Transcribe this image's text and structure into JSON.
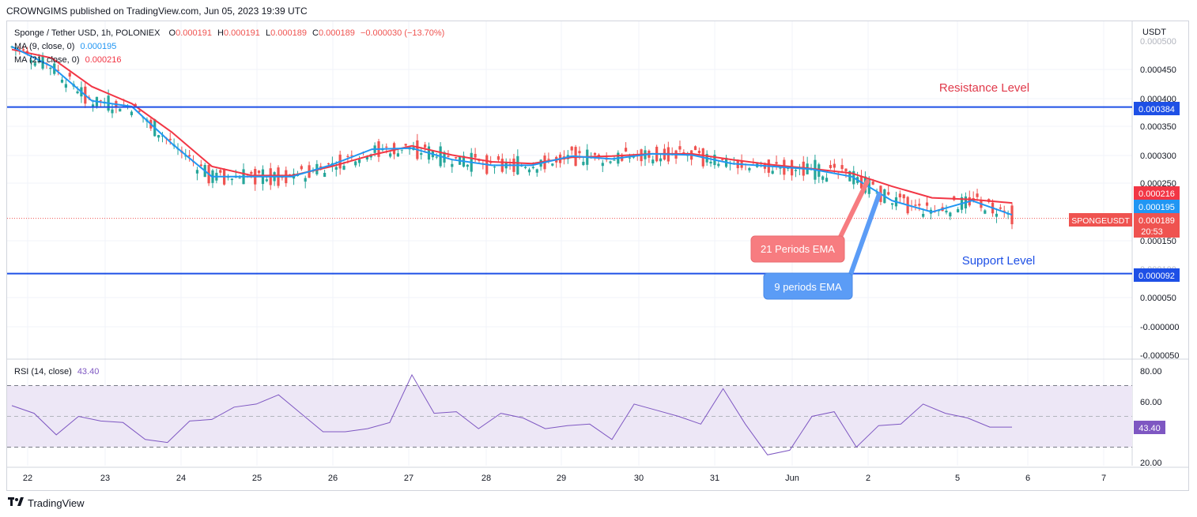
{
  "header": {
    "publisher_line": "CROWNGIMS published on TradingView.com, Jun 05, 2023 19:39 UTC"
  },
  "legend": {
    "symbol_line": "Sponge / Tether USD, 1h, POLONIEX",
    "ohlc": {
      "o_label": "O",
      "o": "0.000191",
      "h_label": "H",
      "h": "0.000191",
      "l_label": "L",
      "l": "0.000189",
      "c_label": "C",
      "c": "0.000189",
      "change": "−0.000030 (−13.70%)"
    },
    "ma9_label": "MA (9, close, 0)",
    "ma9_value": "0.000195",
    "ma21_label": "MA (21, close, 0)",
    "ma21_value": "0.000216"
  },
  "price_axis": {
    "currency": "USDT",
    "ticks": [
      "0.000500",
      "0.000450",
      "0.000400",
      "0.000350",
      "0.000300",
      "0.000250",
      "0.000150",
      "0.000100",
      "0.000050",
      "-0.000000",
      "-0.000050"
    ]
  },
  "price_tags": {
    "resistance": "0.000384",
    "ma21": "0.000216",
    "ma9": "0.000195",
    "last": "0.000189",
    "countdown": "20:53",
    "support": "0.000092",
    "symbol": "SPONGEUSDT"
  },
  "annotations": {
    "resistance_label": "Resistance Level",
    "support_label": "Support Level",
    "ema21_callout": "21 Periods EMA",
    "ema9_callout": "9 periods EMA"
  },
  "rsi": {
    "label": "RSI (14, close)",
    "value": "43.40",
    "ticks": [
      "80.00",
      "60.00",
      "20.00"
    ]
  },
  "time_axis": {
    "labels": [
      "22",
      "23",
      "24",
      "25",
      "26",
      "27",
      "28",
      "29",
      "30",
      "31",
      "Jun",
      "2",
      "5",
      "6",
      "7"
    ]
  },
  "footer": {
    "brand": "TradingView"
  },
  "colors": {
    "up": "#26a69a",
    "down": "#ef5350",
    "ma9": "#2196f3",
    "ma21": "#f23645",
    "level_line": "#1e50e6",
    "rsi_line": "#7e57c2",
    "rsi_band": "#ede7f6",
    "resistance_text": "#e0394a",
    "support_text": "#1e50e6"
  },
  "chart_data": {
    "type": "line",
    "title": "Sponge / Tether USD, 1h, POLONIEX",
    "ylabel": "USDT",
    "ylim": [
      -5e-05,
      0.00052
    ],
    "x": [
      "22",
      "22.5",
      "23",
      "23.5",
      "24",
      "24.5",
      "25",
      "25.5",
      "26",
      "26.5",
      "27",
      "27.5",
      "28",
      "28.5",
      "29",
      "29.5",
      "30",
      "30.5",
      "31",
      "31.5",
      "Jun",
      "Jun.5",
      "2",
      "4",
      "5",
      "5.5"
    ],
    "series": [
      {
        "name": "MA (9, close, 0)",
        "values": [
          0.00049,
          0.000455,
          0.000395,
          0.000385,
          0.00032,
          0.000262,
          0.000262,
          0.000262,
          0.000283,
          0.00031,
          0.000312,
          0.000292,
          0.000282,
          0.000282,
          0.000298,
          0.000293,
          0.000302,
          0.0003,
          0.000285,
          0.00028,
          0.000275,
          0.000262,
          0.00022,
          0.0002,
          0.00022,
          0.000195
        ]
      },
      {
        "name": "MA (21, close, 0)",
        "values": [
          0.000485,
          0.00047,
          0.00042,
          0.00039,
          0.00034,
          0.00028,
          0.000264,
          0.000264,
          0.00028,
          0.0003,
          0.000316,
          0.0003,
          0.000288,
          0.000285,
          0.000296,
          0.000298,
          0.000302,
          0.000302,
          0.000292,
          0.000283,
          0.000276,
          0.000268,
          0.000245,
          0.000225,
          0.000222,
          0.000216
        ]
      }
    ],
    "levels": {
      "resistance": 0.000384,
      "support": 9.2e-05,
      "last": 0.000189
    },
    "rsi": {
      "ylim": [
        10,
        90
      ],
      "bands": [
        30,
        70
      ],
      "values": [
        57,
        52,
        38,
        50,
        47,
        46,
        35,
        33,
        47,
        48,
        56,
        58,
        64,
        52,
        40,
        40,
        42,
        46,
        77,
        52,
        53,
        42,
        52,
        49,
        42,
        44,
        45,
        35,
        58,
        54,
        50,
        45,
        68,
        45,
        25,
        28,
        50,
        53,
        30,
        44,
        45,
        58,
        52,
        49,
        43,
        43
      ]
    }
  }
}
